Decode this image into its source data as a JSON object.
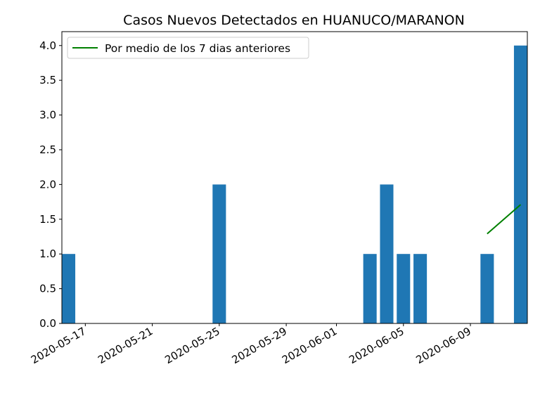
{
  "chart_data": {
    "type": "bar",
    "title": "Casos Nuevos Detectados en HUANUCO/MARANON",
    "xlabel": "",
    "ylabel": "",
    "x_axis_type": "date",
    "xlim": [
      "2020-05-16",
      "2020-06-12"
    ],
    "ylim": [
      0,
      4.2
    ],
    "grid": false,
    "legend_placement": "top-left",
    "x_ticks": [
      "2020-05-17",
      "2020-05-21",
      "2020-05-25",
      "2020-05-29",
      "2020-06-01",
      "2020-06-05",
      "2020-06-09"
    ],
    "y_ticks": [
      "0.0",
      "0.5",
      "1.0",
      "1.5",
      "2.0",
      "2.5",
      "3.0",
      "3.5",
      "4.0"
    ],
    "bar_color": "#1f77b4",
    "bars": [
      {
        "date": "2020-05-16",
        "value": 1
      },
      {
        "date": "2020-05-25",
        "value": 2
      },
      {
        "date": "2020-06-03",
        "value": 1
      },
      {
        "date": "2020-06-04",
        "value": 2
      },
      {
        "date": "2020-06-05",
        "value": 1
      },
      {
        "date": "2020-06-06",
        "value": 1
      },
      {
        "date": "2020-06-10",
        "value": 1
      },
      {
        "date": "2020-06-12",
        "value": 4
      }
    ],
    "series": [
      {
        "name": "Por medio de los 7 dias anteriores",
        "type": "line",
        "color": "#008000",
        "points": [
          {
            "date": "2020-06-10",
            "value": 1.29
          },
          {
            "date": "2020-06-12",
            "value": 1.71
          }
        ]
      }
    ]
  }
}
